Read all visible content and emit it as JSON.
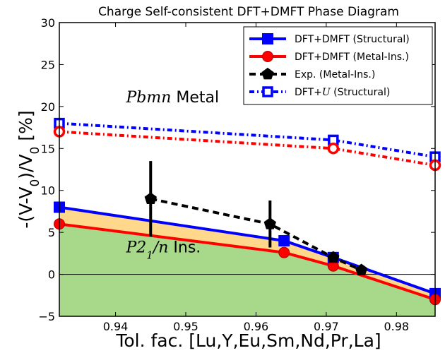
{
  "chart_data": {
    "type": "line",
    "title": "Charge Self-consistent DFT+DMFT Phase Diagram",
    "xlabel": "Tol. fac. [Lu,Y,Eu,Sm,Nd,Pr,La]",
    "ylabel": "-(V-V0)/V0 [%]",
    "xlim": [
      0.932,
      0.9855
    ],
    "ylim": [
      -5,
      30
    ],
    "xticks": [
      0.94,
      0.95,
      0.96,
      0.97,
      0.98
    ],
    "xtick_labels": [
      "0.94",
      "0.95",
      "0.96",
      "0.97",
      "0.98"
    ],
    "yticks": [
      -5,
      0,
      5,
      10,
      15,
      20,
      25,
      30
    ],
    "ytick_labels": [
      "−5",
      "0",
      "5",
      "10",
      "15",
      "20",
      "25",
      "30"
    ],
    "grid": false,
    "legend_position": "top-right",
    "hline_y": 0,
    "region_labels": [
      {
        "italic": "Pbmn",
        "text": " Metal",
        "x": 0.9415,
        "y": 20.5
      },
      {
        "italic": "P2",
        "sub": "1",
        "italic2": "/n",
        "text": " Ins.",
        "x": 0.9415,
        "y": 2.6
      }
    ],
    "series": [
      {
        "name": "DFT+DMFT (Structural)",
        "color": "#0000ff",
        "marker": "square",
        "linestyle": "solid",
        "x": [
          0.932,
          0.964,
          0.971,
          0.9855
        ],
        "y": [
          8.0,
          4.0,
          2.0,
          -2.3
        ]
      },
      {
        "name": "DFT+DMFT (Metal-Ins.)",
        "color": "#ff0000",
        "marker": "circle",
        "linestyle": "solid",
        "x": [
          0.932,
          0.964,
          0.971,
          0.9855
        ],
        "y": [
          6.0,
          2.6,
          1.0,
          -3.0
        ]
      },
      {
        "name": "Exp. (Metal-Ins.)",
        "color": "#000000",
        "marker": "pentagon",
        "linestyle": "dashed",
        "x": [
          0.945,
          0.962,
          0.971,
          0.975
        ],
        "y": [
          9.0,
          6.0,
          2.0,
          0.5
        ],
        "errors": [
          4.5,
          2.8,
          0,
          0
        ]
      },
      {
        "name": "DFT+U (Structural)",
        "name_prefix": "DFT+",
        "name_italic": "U",
        "name_suffix": " (Structural)",
        "color": "#0000ff",
        "marker": "open-square",
        "linestyle": "dashdot",
        "x": [
          0.932,
          0.971,
          0.9855
        ],
        "y": [
          18.0,
          16.0,
          14.0
        ]
      },
      {
        "name": "",
        "color": "#ff0000",
        "marker": "open-circle",
        "linestyle": "dashdot",
        "x": [
          0.932,
          0.971,
          0.9855
        ],
        "y": [
          17.0,
          15.0,
          13.0
        ]
      }
    ],
    "fills": [
      {
        "between": [
          "DFT+DMFT (Structural)",
          "DFT+DMFT (Metal-Ins.)"
        ],
        "color": "#ffd88c"
      },
      {
        "between": [
          "DFT+DMFT (Metal-Ins.)",
          "axis-bottom"
        ],
        "color": "#a8d98a"
      }
    ]
  }
}
